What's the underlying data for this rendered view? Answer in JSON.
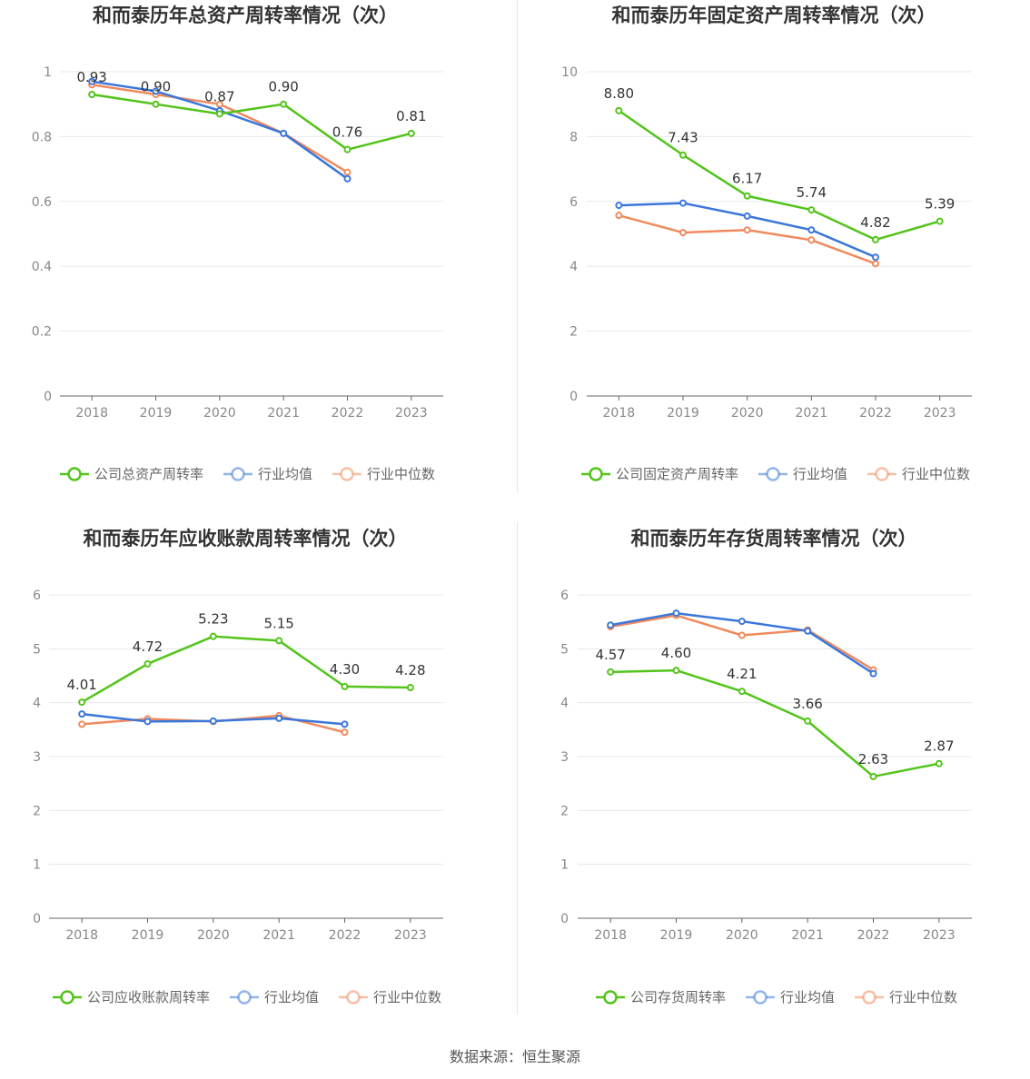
{
  "colors": {
    "company": "#52c41a",
    "average": "#3a77d9",
    "median": "#f08a5d"
  },
  "source": "数据来源：恒生聚源",
  "chart_data": [
    {
      "type": "line",
      "title": "和而泰历年总资产周转率情况（次）",
      "categories": [
        "2018",
        "2019",
        "2020",
        "2021",
        "2022",
        "2023"
      ],
      "ylim": [
        0,
        1
      ],
      "yticks": [
        "0",
        "0.2",
        "0.4",
        "0.6",
        "0.8",
        "1"
      ],
      "ytick_values": [
        0,
        0.2,
        0.4,
        0.6,
        0.8,
        1
      ],
      "series": [
        {
          "name": "公司总资产周转率",
          "key": "company",
          "values": [
            0.93,
            0.9,
            0.87,
            0.9,
            0.76,
            0.81
          ],
          "labels": [
            "0.93",
            "0.90",
            "0.87",
            "0.90",
            "0.76",
            "0.81"
          ]
        },
        {
          "name": "行业均值",
          "key": "average",
          "values": [
            0.97,
            0.94,
            0.88,
            0.81,
            0.67,
            null
          ]
        },
        {
          "name": "行业中位数",
          "key": "median",
          "values": [
            0.96,
            0.93,
            0.9,
            0.81,
            0.69,
            null
          ]
        }
      ]
    },
    {
      "type": "line",
      "title": "和而泰历年固定资产周转率情况（次）",
      "categories": [
        "2018",
        "2019",
        "2020",
        "2021",
        "2022",
        "2023"
      ],
      "ylim": [
        0,
        10
      ],
      "yticks": [
        "0",
        "2",
        "4",
        "6",
        "8",
        "10"
      ],
      "ytick_values": [
        0,
        2,
        4,
        6,
        8,
        10
      ],
      "series": [
        {
          "name": "公司固定资产周转率",
          "key": "company",
          "values": [
            8.8,
            7.43,
            6.17,
            5.74,
            4.82,
            5.39
          ],
          "labels": [
            "8.80",
            "7.43",
            "6.17",
            "5.74",
            "4.82",
            "5.39"
          ]
        },
        {
          "name": "行业均值",
          "key": "average",
          "values": [
            5.88,
            5.95,
            5.55,
            5.12,
            4.28,
            null
          ]
        },
        {
          "name": "行业中位数",
          "key": "median",
          "values": [
            5.57,
            5.04,
            5.12,
            4.81,
            4.08,
            null
          ]
        }
      ]
    },
    {
      "type": "line",
      "title": "和而泰历年应收账款周转率情况（次）",
      "categories": [
        "2018",
        "2019",
        "2020",
        "2021",
        "2022",
        "2023"
      ],
      "ylim": [
        0,
        6
      ],
      "yticks": [
        "0",
        "1",
        "2",
        "3",
        "4",
        "5",
        "6"
      ],
      "ytick_values": [
        0,
        1,
        2,
        3,
        4,
        5,
        6
      ],
      "series": [
        {
          "name": "公司应收账款周转率",
          "key": "company",
          "values": [
            4.01,
            4.72,
            5.23,
            5.15,
            4.3,
            4.28
          ],
          "labels": [
            "4.01",
            "4.72",
            "5.23",
            "5.15",
            "4.30",
            "4.28"
          ]
        },
        {
          "name": "行业均值",
          "key": "average",
          "values": [
            3.79,
            3.65,
            3.66,
            3.71,
            3.6,
            null
          ]
        },
        {
          "name": "行业中位数",
          "key": "median",
          "values": [
            3.6,
            3.7,
            3.65,
            3.76,
            3.45,
            null
          ]
        }
      ]
    },
    {
      "type": "line",
      "title": "和而泰历年存货周转率情况（次）",
      "categories": [
        "2018",
        "2019",
        "2020",
        "2021",
        "2022",
        "2023"
      ],
      "ylim": [
        0,
        6
      ],
      "yticks": [
        "0",
        "1",
        "2",
        "3",
        "4",
        "5",
        "6"
      ],
      "ytick_values": [
        0,
        1,
        2,
        3,
        4,
        5,
        6
      ],
      "series": [
        {
          "name": "公司存货周转率",
          "key": "company",
          "values": [
            4.57,
            4.6,
            4.21,
            3.66,
            2.63,
            2.87
          ],
          "labels": [
            "4.57",
            "4.60",
            "4.21",
            "3.66",
            "2.63",
            "2.87"
          ]
        },
        {
          "name": "行业均值",
          "key": "average",
          "values": [
            5.44,
            5.66,
            5.51,
            5.33,
            4.54,
            null
          ]
        },
        {
          "name": "行业中位数",
          "key": "median",
          "values": [
            5.41,
            5.62,
            5.25,
            5.35,
            4.61,
            null
          ]
        }
      ]
    }
  ]
}
